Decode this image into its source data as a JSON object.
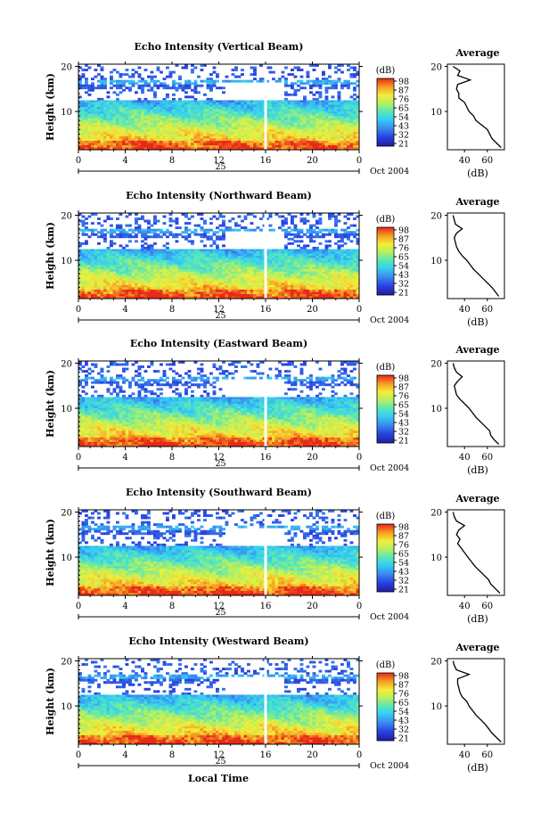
{
  "figure": {
    "x_axis_label": "Local Time",
    "day_label": "25",
    "date_label": "Oct 2004",
    "colorbar_unit": "(dB)",
    "avg_title": "Average",
    "avg_xlabel": "(dB)",
    "y_label": "Height (km)"
  },
  "chart_data": [
    {
      "type": "heatmap",
      "title": "Echo Intensity (Vertical Beam)",
      "ylabel": "Height (km)",
      "xlabel": "Local Time",
      "x_ticks": [
        "0",
        "4",
        "8",
        "12",
        "16",
        "20",
        "0"
      ],
      "y_ticks": [
        "20",
        "10"
      ],
      "xlim": [
        0,
        24
      ],
      "ylim": [
        1.5,
        20.5
      ],
      "colorbar": {
        "label": "(dB)",
        "ticks": [
          "98",
          "87",
          "76",
          "65",
          "54",
          "43",
          "32",
          "21"
        ],
        "range": [
          21,
          98
        ]
      },
      "data_gap_hour": 16,
      "profile": {
        "title": "Average",
        "xlabel": "(dB)",
        "x_ticks": [
          "40",
          "60"
        ],
        "y_ticks": [
          "20",
          "10"
        ],
        "xlim": [
          25,
          75
        ],
        "ylim": [
          1.5,
          20.5
        ],
        "height": [
          2,
          3,
          4,
          5,
          6,
          7,
          8,
          9,
          10,
          11,
          12,
          13,
          14,
          15,
          16,
          17,
          18,
          19,
          20
        ],
        "db": [
          72,
          68,
          64,
          62,
          60,
          55,
          50,
          48,
          44,
          42,
          40,
          35,
          35,
          33,
          34,
          45,
          34,
          36,
          30
        ]
      }
    },
    {
      "type": "heatmap",
      "title": "Echo Intensity (Northward Beam)",
      "ylabel": "Height (km)",
      "xlabel": "Local Time",
      "x_ticks": [
        "0",
        "4",
        "8",
        "12",
        "16",
        "20",
        "0"
      ],
      "y_ticks": [
        "20",
        "10"
      ],
      "xlim": [
        0,
        24
      ],
      "ylim": [
        1.5,
        20.5
      ],
      "colorbar": {
        "label": "(dB)",
        "ticks": [
          "98",
          "87",
          "76",
          "65",
          "54",
          "43",
          "32",
          "21"
        ],
        "range": [
          21,
          98
        ]
      },
      "data_gap_hour": 16,
      "profile": {
        "title": "Average",
        "xlabel": "(dB)",
        "x_ticks": [
          "40",
          "60"
        ],
        "y_ticks": [
          "20",
          "10"
        ],
        "xlim": [
          25,
          75
        ],
        "ylim": [
          1.5,
          20.5
        ],
        "height": [
          2,
          3,
          4,
          5,
          6,
          7,
          8,
          9,
          10,
          11,
          12,
          13,
          14,
          15,
          16,
          17,
          18,
          19,
          20
        ],
        "db": [
          70,
          67,
          64,
          60,
          56,
          52,
          48,
          45,
          42,
          38,
          35,
          33,
          32,
          31,
          33,
          38,
          32,
          31,
          30
        ]
      }
    },
    {
      "type": "heatmap",
      "title": "Echo Intensity (Eastward Beam)",
      "ylabel": "Height (km)",
      "xlabel": "Local Time",
      "x_ticks": [
        "0",
        "4",
        "8",
        "12",
        "16",
        "20",
        "0"
      ],
      "y_ticks": [
        "20",
        "10"
      ],
      "xlim": [
        0,
        24
      ],
      "ylim": [
        1.5,
        20.5
      ],
      "colorbar": {
        "label": "(dB)",
        "ticks": [
          "98",
          "87",
          "76",
          "65",
          "54",
          "43",
          "32",
          "21"
        ],
        "range": [
          21,
          98
        ]
      },
      "data_gap_hour": 16,
      "profile": {
        "title": "Average",
        "xlabel": "(dB)",
        "x_ticks": [
          "40",
          "60"
        ],
        "y_ticks": [
          "20",
          "10"
        ],
        "xlim": [
          25,
          75
        ],
        "ylim": [
          1.5,
          20.5
        ],
        "height": [
          2,
          3,
          4,
          5,
          6,
          7,
          8,
          9,
          10,
          11,
          12,
          13,
          14,
          15,
          16,
          17,
          18,
          19,
          20
        ],
        "db": [
          70,
          66,
          63,
          62,
          58,
          54,
          50,
          47,
          44,
          40,
          36,
          33,
          32,
          31,
          34,
          38,
          33,
          31,
          30
        ]
      }
    },
    {
      "type": "heatmap",
      "title": "Echo Intensity (Southward Beam)",
      "ylabel": "Height (km)",
      "xlabel": "Local Time",
      "x_ticks": [
        "0",
        "4",
        "8",
        "12",
        "16",
        "20",
        "0"
      ],
      "y_ticks": [
        "20",
        "10"
      ],
      "xlim": [
        0,
        24
      ],
      "ylim": [
        1.5,
        20.5
      ],
      "colorbar": {
        "label": "(dB)",
        "ticks": [
          "98",
          "87",
          "76",
          "65",
          "54",
          "43",
          "32",
          "21"
        ],
        "range": [
          21,
          98
        ]
      },
      "data_gap_hour": 16,
      "profile": {
        "title": "Average",
        "xlabel": "(dB)",
        "x_ticks": [
          "40",
          "60"
        ],
        "y_ticks": [
          "20",
          "10"
        ],
        "xlim": [
          25,
          75
        ],
        "ylim": [
          1.5,
          20.5
        ],
        "height": [
          2,
          3,
          4,
          5,
          6,
          7,
          8,
          9,
          10,
          11,
          12,
          13,
          14,
          15,
          16,
          17,
          18,
          19,
          20
        ],
        "db": [
          71,
          67,
          63,
          61,
          57,
          53,
          49,
          46,
          43,
          40,
          37,
          34,
          36,
          33,
          35,
          40,
          33,
          31,
          30
        ]
      }
    },
    {
      "type": "heatmap",
      "title": "Echo Intensity (Westward Beam)",
      "ylabel": "Height (km)",
      "xlabel": "Local Time",
      "x_ticks": [
        "0",
        "4",
        "8",
        "12",
        "16",
        "20",
        "0"
      ],
      "y_ticks": [
        "20",
        "10"
      ],
      "xlim": [
        0,
        24
      ],
      "ylim": [
        1.5,
        20.5
      ],
      "colorbar": {
        "label": "(dB)",
        "ticks": [
          "98",
          "87",
          "76",
          "65",
          "54",
          "43",
          "32",
          "21"
        ],
        "range": [
          21,
          98
        ]
      },
      "data_gap_hour": 16,
      "profile": {
        "title": "Average",
        "xlabel": "(dB)",
        "x_ticks": [
          "40",
          "60"
        ],
        "y_ticks": [
          "20",
          "10"
        ],
        "xlim": [
          25,
          75
        ],
        "ylim": [
          1.5,
          20.5
        ],
        "height": [
          2,
          3,
          4,
          5,
          6,
          7,
          8,
          9,
          10,
          11,
          12,
          13,
          14,
          15,
          16,
          17,
          18,
          19,
          20
        ],
        "db": [
          72,
          68,
          64,
          61,
          58,
          54,
          50,
          47,
          44,
          42,
          38,
          36,
          35,
          34,
          34,
          44,
          33,
          31,
          30
        ]
      }
    }
  ]
}
